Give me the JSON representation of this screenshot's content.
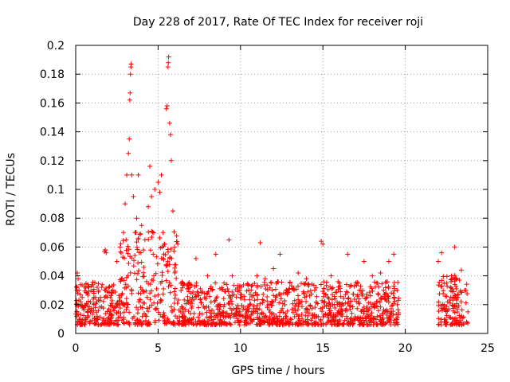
{
  "chart_data": {
    "type": "scatter",
    "title": "Day 228 of 2017, Rate Of TEC Index for receiver roji",
    "xlabel": "GPS time / hours",
    "ylabel": "ROTI / TECUs",
    "xlim": [
      0,
      25
    ],
    "ylim": [
      0,
      0.2
    ],
    "x_ticks": [
      0,
      5,
      10,
      15,
      20,
      25
    ],
    "x_tick_labels": [
      "0",
      "5",
      "10",
      "15",
      "20",
      "25"
    ],
    "y_ticks": [
      0,
      0.02,
      0.04,
      0.06,
      0.08,
      0.1,
      0.12,
      0.14,
      0.16,
      0.18,
      0.2
    ],
    "y_tick_labels": [
      "0",
      "0.02",
      "0.04",
      "0.06",
      "0.08",
      "0.1",
      "0.12",
      "0.14",
      "0.16",
      "0.18",
      "0.2"
    ],
    "grid": true,
    "marker": "plus",
    "marker_color": "#ff0000",
    "envelope_note_hours": [
      0,
      19.6,
      22,
      23.8
    ],
    "series": [
      {
        "points": [
          [
            0.05,
            0.012
          ],
          [
            0.1,
            0.042
          ],
          [
            0.15,
            0.038
          ],
          [
            0.2,
            0.03
          ],
          [
            0.3,
            0.022
          ],
          [
            0.5,
            0.018
          ],
          [
            0.7,
            0.028
          ],
          [
            0.9,
            0.015
          ],
          [
            1.1,
            0.02
          ],
          [
            1.3,
            0.012
          ],
          [
            1.5,
            0.025
          ],
          [
            1.75,
            0.057
          ],
          [
            1.8,
            0.058
          ],
          [
            1.85,
            0.056
          ],
          [
            2.0,
            0.032
          ],
          [
            2.2,
            0.028
          ],
          [
            2.5,
            0.05
          ],
          [
            2.7,
            0.06
          ],
          [
            2.9,
            0.07
          ],
          [
            3.0,
            0.09
          ],
          [
            3.1,
            0.11
          ],
          [
            3.2,
            0.125
          ],
          [
            3.25,
            0.135
          ],
          [
            3.28,
            0.162
          ],
          [
            3.3,
            0.167
          ],
          [
            3.32,
            0.18
          ],
          [
            3.35,
            0.185
          ],
          [
            3.36,
            0.187
          ],
          [
            3.4,
            0.11
          ],
          [
            3.5,
            0.095
          ],
          [
            3.6,
            0.07
          ],
          [
            3.7,
            0.08
          ],
          [
            3.8,
            0.11
          ],
          [
            4.0,
            0.075
          ],
          [
            4.2,
            0.065
          ],
          [
            4.4,
            0.088
          ],
          [
            4.5,
            0.116
          ],
          [
            4.6,
            0.095
          ],
          [
            4.8,
            0.1
          ],
          [
            5.0,
            0.105
          ],
          [
            5.1,
            0.098
          ],
          [
            5.2,
            0.11
          ],
          [
            5.3,
            0.07
          ],
          [
            5.4,
            0.062
          ],
          [
            5.5,
            0.156
          ],
          [
            5.55,
            0.158
          ],
          [
            5.6,
            0.185
          ],
          [
            5.62,
            0.188
          ],
          [
            5.64,
            0.192
          ],
          [
            5.7,
            0.146
          ],
          [
            5.75,
            0.138
          ],
          [
            5.8,
            0.12
          ],
          [
            5.9,
            0.085
          ],
          [
            6.0,
            0.06
          ],
          [
            6.5,
            0.035
          ],
          [
            7.0,
            0.028
          ],
          [
            7.3,
            0.052
          ],
          [
            8.0,
            0.04
          ],
          [
            8.5,
            0.055
          ],
          [
            9.0,
            0.035
          ],
          [
            9.3,
            0.065
          ],
          [
            9.5,
            0.04
          ],
          [
            10.0,
            0.025
          ],
          [
            10.5,
            0.03
          ],
          [
            11.0,
            0.04
          ],
          [
            11.2,
            0.063
          ],
          [
            11.5,
            0.038
          ],
          [
            12.0,
            0.045
          ],
          [
            12.4,
            0.055
          ],
          [
            13.0,
            0.035
          ],
          [
            13.5,
            0.042
          ],
          [
            14.0,
            0.038
          ],
          [
            14.5,
            0.03
          ],
          [
            14.9,
            0.064
          ],
          [
            15.0,
            0.062
          ],
          [
            15.5,
            0.04
          ],
          [
            16.0,
            0.035
          ],
          [
            16.5,
            0.055
          ],
          [
            17.0,
            0.035
          ],
          [
            17.5,
            0.05
          ],
          [
            18.0,
            0.04
          ],
          [
            18.5,
            0.042
          ],
          [
            19.0,
            0.05
          ],
          [
            19.3,
            0.055
          ],
          [
            19.5,
            0.03
          ],
          [
            22.0,
            0.05
          ],
          [
            22.2,
            0.056
          ],
          [
            22.5,
            0.035
          ],
          [
            22.8,
            0.04
          ],
          [
            23.0,
            0.06
          ],
          [
            23.2,
            0.025
          ],
          [
            23.4,
            0.044
          ],
          [
            23.6,
            0.03
          ],
          [
            23.8,
            0.015
          ]
        ]
      }
    ]
  }
}
